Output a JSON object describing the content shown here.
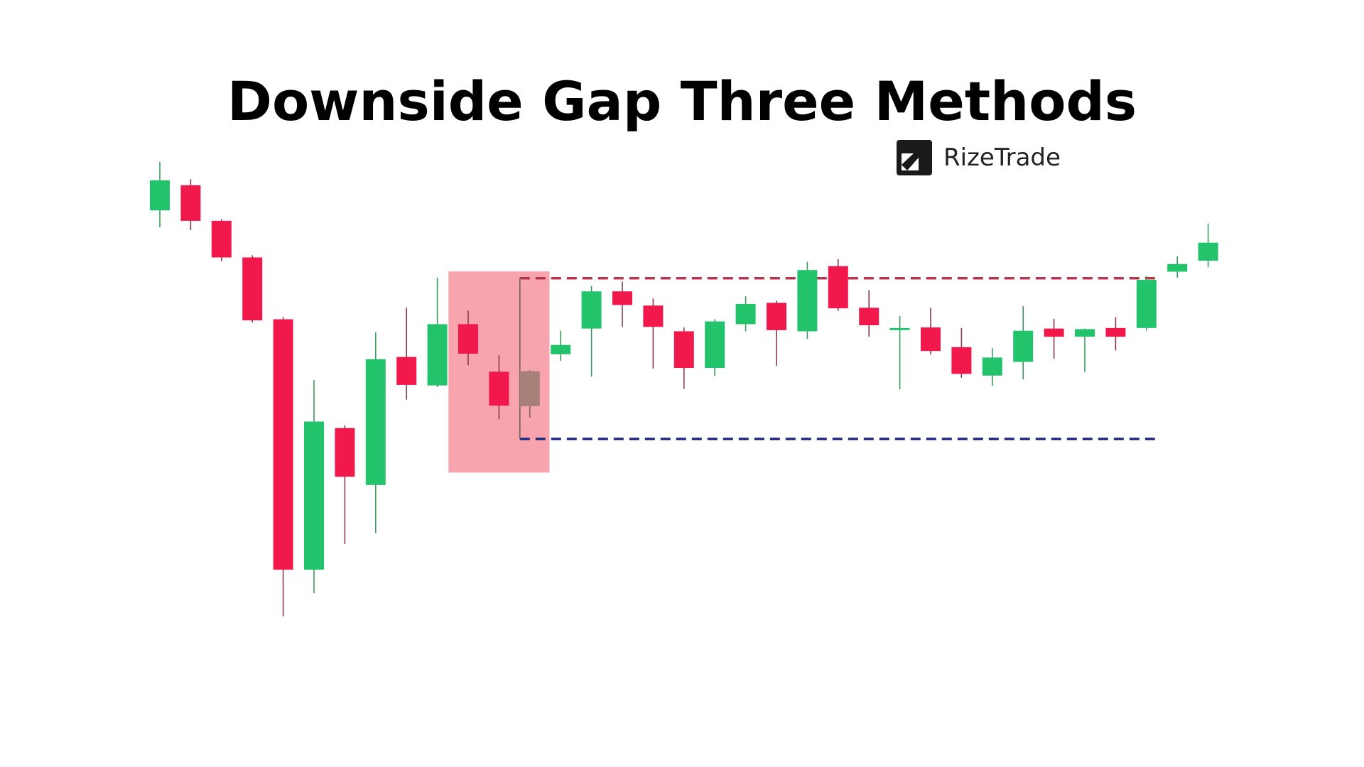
{
  "title": "Downside Gap Three Methods",
  "brand": {
    "name": "RizeTrade",
    "icon": "arrow-up-right-logo-icon"
  },
  "colors": {
    "bull": "#22c36a",
    "bear": "#f1184c",
    "gap_candle": "#a7807a",
    "highlight": "#f79aa6",
    "resistance_line": "#b3384f",
    "support_line": "#232a7f",
    "wick": "#606060"
  },
  "chart_data": {
    "type": "candlestick",
    "title": "Downside Gap Three Methods",
    "xlabel": "",
    "ylabel": "",
    "ylim": [
      0,
      670
    ],
    "grid": false,
    "legend": false,
    "candles": [
      {
        "open": 600,
        "close": 545,
        "high": 634,
        "low": 514,
        "dir": "bull"
      },
      {
        "open": 591,
        "close": 526,
        "high": 602,
        "low": 509,
        "dir": "bear"
      },
      {
        "open": 526,
        "close": 459,
        "high": 529,
        "low": 452,
        "dir": "bear"
      },
      {
        "open": 459,
        "close": 344,
        "high": 463,
        "low": 340,
        "dir": "bear"
      },
      {
        "open": 346,
        "close": -112,
        "high": 350,
        "low": -197,
        "dir": "bear"
      },
      {
        "open": -112,
        "close": 159,
        "high": 235,
        "low": -155,
        "dir": "bull"
      },
      {
        "open": 147,
        "close": 58,
        "high": 152,
        "low": -65,
        "dir": "bear"
      },
      {
        "open": 43,
        "close": 273,
        "high": 322,
        "low": -45,
        "dir": "bull"
      },
      {
        "open": 277,
        "close": 226,
        "high": 367,
        "low": 199,
        "dir": "bear"
      },
      {
        "open": 225,
        "close": 337,
        "high": 422,
        "low": 222,
        "dir": "bull"
      },
      {
        "open": 337,
        "close": 283,
        "high": 362,
        "low": 262,
        "dir": "bear",
        "highlighted": true
      },
      {
        "open": 250,
        "close": 188,
        "high": 280,
        "low": 163,
        "dir": "bear",
        "highlighted": true
      },
      {
        "open": 251,
        "close": 187,
        "high": 253,
        "low": 166,
        "dir": "gap",
        "highlighted": true
      },
      {
        "open": 282,
        "close": 299,
        "high": 325,
        "low": 270,
        "dir": "bull"
      },
      {
        "open": 329,
        "close": 397,
        "high": 407,
        "low": 241,
        "dir": "bull"
      },
      {
        "open": 397,
        "close": 372,
        "high": 415,
        "low": 332,
        "dir": "bear"
      },
      {
        "open": 371,
        "close": 332,
        "high": 384,
        "low": 256,
        "dir": "bear"
      },
      {
        "open": 324,
        "close": 257,
        "high": 331,
        "low": 219,
        "dir": "bear"
      },
      {
        "open": 257,
        "close": 342,
        "high": 346,
        "low": 242,
        "dir": "bull"
      },
      {
        "open": 337,
        "close": 374,
        "high": 388,
        "low": 324,
        "dir": "bull"
      },
      {
        "open": 376,
        "close": 326,
        "high": 380,
        "low": 261,
        "dir": "bear"
      },
      {
        "open": 324,
        "close": 436,
        "high": 451,
        "low": 310,
        "dir": "bull"
      },
      {
        "open": 443,
        "close": 366,
        "high": 456,
        "low": 361,
        "dir": "bear"
      },
      {
        "open": 367,
        "close": 335,
        "high": 399,
        "low": 314,
        "dir": "bear"
      },
      {
        "open": 330,
        "close": 327,
        "high": 352,
        "low": 218,
        "dir": "bull"
      },
      {
        "open": 331,
        "close": 288,
        "high": 367,
        "low": 282,
        "dir": "bear"
      },
      {
        "open": 295,
        "close": 246,
        "high": 330,
        "low": 239,
        "dir": "bear"
      },
      {
        "open": 243,
        "close": 276,
        "high": 293,
        "low": 224,
        "dir": "bull"
      },
      {
        "open": 268,
        "close": 325,
        "high": 370,
        "low": 236,
        "dir": "bull"
      },
      {
        "open": 329,
        "close": 314,
        "high": 347,
        "low": 274,
        "dir": "bear"
      },
      {
        "open": 314,
        "close": 328,
        "high": 329,
        "low": 249,
        "dir": "bull"
      },
      {
        "open": 330,
        "close": 314,
        "high": 350,
        "low": 289,
        "dir": "bear"
      },
      {
        "open": 330,
        "close": 418,
        "high": 425,
        "low": 325,
        "dir": "bull"
      },
      {
        "open": 433,
        "close": 447,
        "high": 461,
        "low": 422,
        "dir": "bull"
      },
      {
        "open": 453,
        "close": 486,
        "high": 521,
        "low": 441,
        "dir": "bull"
      }
    ],
    "highlight_range": [
      10,
      12
    ],
    "annotations": [
      {
        "type": "hline",
        "style": "dashed",
        "value": 421,
        "from_index": 12,
        "to_index": 32,
        "color": "resistance"
      },
      {
        "type": "hline",
        "style": "dashed",
        "value": 127,
        "from_index": 12,
        "to_index": 32,
        "color": "support"
      }
    ]
  }
}
